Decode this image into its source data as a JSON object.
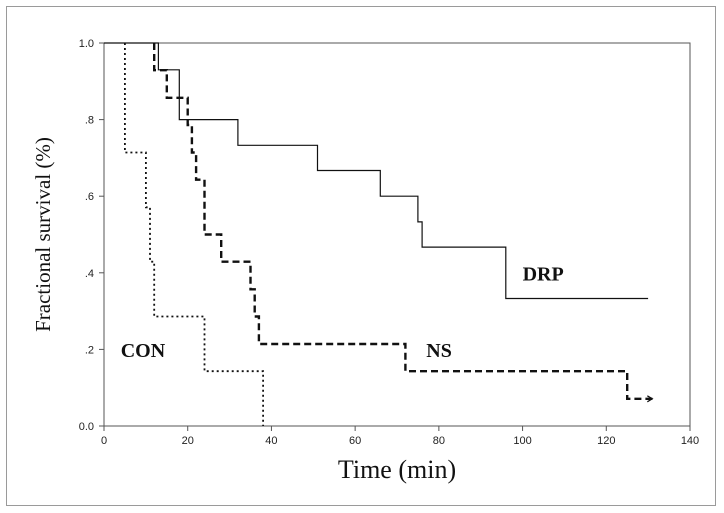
{
  "chart_data": {
    "type": "line",
    "step": true,
    "xlabel": "Time (min)",
    "ylabel": "Fractional survival (%)",
    "xlim": [
      0,
      140
    ],
    "ylim": [
      0,
      1.0
    ],
    "x_ticks": [
      0,
      20,
      40,
      60,
      80,
      100,
      120,
      140
    ],
    "y_ticks": [
      {
        "value": 0.0,
        "label": "0.0"
      },
      {
        "value": 0.2,
        "label": ".2"
      },
      {
        "value": 0.4,
        "label": ".4"
      },
      {
        "value": 0.6,
        "label": ".6"
      },
      {
        "value": 0.8,
        "label": ".8"
      },
      {
        "value": 1.0,
        "label": "1.0"
      }
    ],
    "grid": false,
    "series": [
      {
        "name": "DRP",
        "style": "solid",
        "points": [
          [
            0,
            1.0
          ],
          [
            13,
            1.0
          ],
          [
            13,
            0.93
          ],
          [
            18,
            0.93
          ],
          [
            18,
            0.8
          ],
          [
            32,
            0.8
          ],
          [
            32,
            0.733
          ],
          [
            51,
            0.733
          ],
          [
            51,
            0.667
          ],
          [
            66,
            0.667
          ],
          [
            66,
            0.6
          ],
          [
            75,
            0.6
          ],
          [
            75,
            0.533
          ],
          [
            76,
            0.533
          ],
          [
            76,
            0.467
          ],
          [
            96,
            0.467
          ],
          [
            96,
            0.333
          ],
          [
            130,
            0.333
          ]
        ]
      },
      {
        "name": "NS",
        "style": "dashed",
        "points": [
          [
            12,
            1.0
          ],
          [
            12,
            0.929
          ],
          [
            15,
            0.929
          ],
          [
            15,
            0.857
          ],
          [
            20,
            0.857
          ],
          [
            20,
            0.786
          ],
          [
            21,
            0.786
          ],
          [
            21,
            0.714
          ],
          [
            22,
            0.714
          ],
          [
            22,
            0.643
          ],
          [
            24,
            0.643
          ],
          [
            24,
            0.5
          ],
          [
            28,
            0.5
          ],
          [
            28,
            0.429
          ],
          [
            35,
            0.429
          ],
          [
            35,
            0.357
          ],
          [
            36,
            0.357
          ],
          [
            36,
            0.286
          ],
          [
            37,
            0.286
          ],
          [
            37,
            0.214
          ],
          [
            72,
            0.214
          ],
          [
            72,
            0.143
          ],
          [
            125,
            0.143
          ],
          [
            125,
            0.071
          ],
          [
            131,
            0.071
          ]
        ]
      },
      {
        "name": "CON",
        "style": "dotted",
        "points": [
          [
            5,
            1.0
          ],
          [
            5,
            0.714
          ],
          [
            10,
            0.714
          ],
          [
            10,
            0.571
          ],
          [
            11,
            0.571
          ],
          [
            11,
            0.429
          ],
          [
            12,
            0.429
          ],
          [
            12,
            0.286
          ],
          [
            24,
            0.286
          ],
          [
            24,
            0.143
          ],
          [
            38,
            0.143
          ],
          [
            38,
            0.0
          ]
        ]
      }
    ],
    "annotations": [
      {
        "text": "DRP",
        "x": 100,
        "y": 0.38
      },
      {
        "text": "NS",
        "x": 77,
        "y": 0.18
      },
      {
        "text": "CON",
        "x": 4,
        "y": 0.18
      }
    ]
  }
}
